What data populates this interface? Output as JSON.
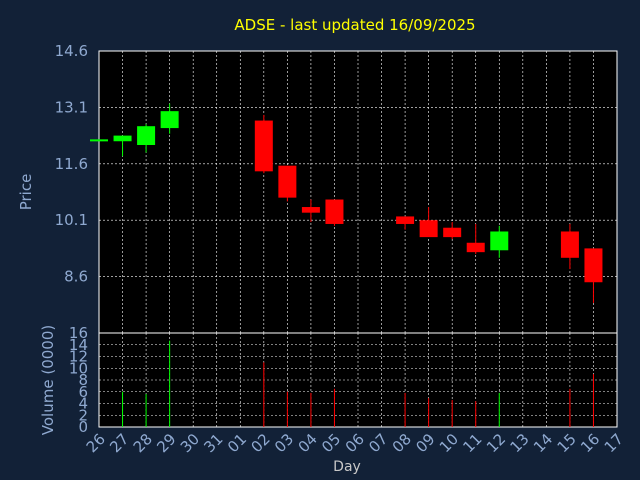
{
  "chart_data": {
    "type": "candlestick",
    "title": "ADSE - last updated 16/09/2025",
    "xlabel": "Day",
    "price_panel": {
      "ylabel": "Price",
      "ylim": [
        7.1,
        14.6
      ],
      "yticks": [
        "14.6",
        "13.1",
        "11.6",
        "10.1",
        "8.6"
      ],
      "ytick_values": [
        14.6,
        13.1,
        11.6,
        10.1,
        8.6
      ]
    },
    "volume_panel": {
      "ylabel": "Volume (0000)",
      "ylim": [
        0,
        16
      ],
      "yticks": [
        "16",
        "14",
        "12",
        "10",
        "8",
        "6",
        "4",
        "2",
        "0"
      ],
      "ytick_values": [
        16,
        14,
        12,
        10,
        8,
        6,
        4,
        2,
        0
      ]
    },
    "x_ticks": [
      "26",
      "27",
      "28",
      "29",
      "30",
      "31",
      "01",
      "02",
      "03",
      "04",
      "05",
      "06",
      "07",
      "08",
      "09",
      "10",
      "11",
      "12",
      "13",
      "14",
      "15",
      "16",
      "17"
    ],
    "grid": true,
    "colors": {
      "background": "#122137",
      "plot_background": "#000000",
      "grid": "#ffffff",
      "up": "#00ff00",
      "down": "#ff0000",
      "axis_text": "#8fa9d0",
      "title": "#ffff00",
      "xlabel": "#c8c8c8"
    },
    "candles": [
      {
        "day": "26",
        "open": 12.25,
        "high": 12.25,
        "low": 12.22,
        "close": 12.25,
        "volume": 0
      },
      {
        "day": "27",
        "open": 12.2,
        "high": 12.35,
        "low": 11.8,
        "close": 12.35,
        "volume": 6.0
      },
      {
        "day": "28",
        "open": 12.1,
        "high": 12.65,
        "low": 11.9,
        "close": 12.6,
        "volume": 5.6
      },
      {
        "day": "29",
        "open": 12.55,
        "high": 13.2,
        "low": 12.4,
        "close": 13.0,
        "volume": 14.7
      },
      {
        "day": "02",
        "open": 12.75,
        "high": 12.9,
        "low": 11.35,
        "close": 11.4,
        "volume": 11.0
      },
      {
        "day": "03",
        "open": 11.55,
        "high": 11.55,
        "low": 10.6,
        "close": 10.7,
        "volume": 6.0
      },
      {
        "day": "04",
        "open": 10.45,
        "high": 10.65,
        "low": 10.05,
        "close": 10.3,
        "volume": 5.8
      },
      {
        "day": "05",
        "open": 10.65,
        "high": 10.65,
        "low": 9.95,
        "close": 10.0,
        "volume": 6.5
      },
      {
        "day": "08",
        "open": 10.2,
        "high": 10.2,
        "low": 9.85,
        "close": 10.0,
        "volume": 5.8
      },
      {
        "day": "09",
        "open": 10.1,
        "high": 10.45,
        "low": 9.7,
        "close": 9.65,
        "volume": 4.9
      },
      {
        "day": "10",
        "open": 9.9,
        "high": 10.05,
        "low": 9.6,
        "close": 9.65,
        "volume": 4.6
      },
      {
        "day": "11",
        "open": 9.5,
        "high": 10.0,
        "low": 9.2,
        "close": 9.25,
        "volume": 4.4
      },
      {
        "day": "12",
        "open": 9.3,
        "high": 9.95,
        "low": 9.1,
        "close": 9.8,
        "volume": 5.8
      },
      {
        "day": "15",
        "open": 9.8,
        "high": 10.0,
        "low": 8.8,
        "close": 9.1,
        "volume": 6.5
      },
      {
        "day": "16",
        "open": 9.35,
        "high": 9.35,
        "low": 7.9,
        "close": 8.45,
        "volume": 9.0
      }
    ]
  }
}
